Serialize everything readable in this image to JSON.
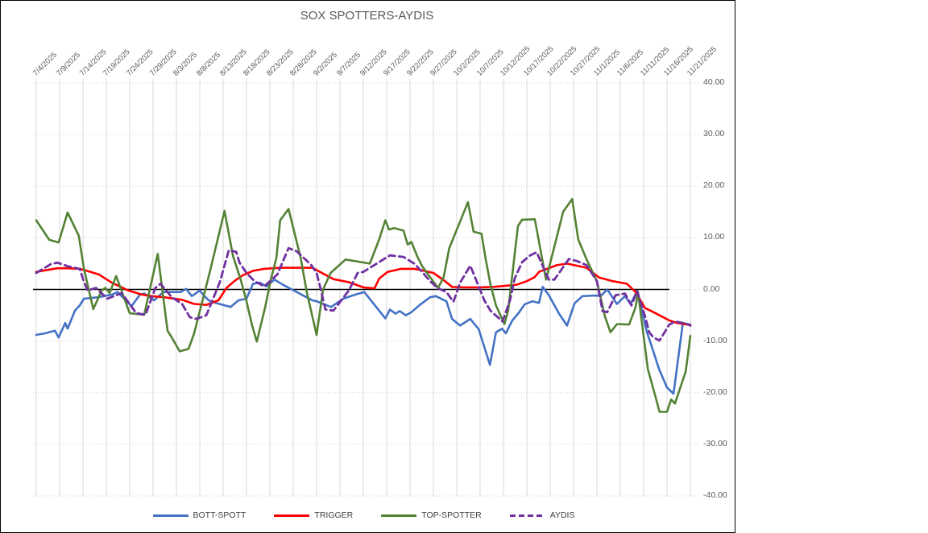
{
  "chart_data": {
    "type": "line",
    "title": "SOX SPOTTERS-AYDIS",
    "x_axis": {
      "unit": "date",
      "start_label": "7/4/2025",
      "end_label": "11/21/2025",
      "tick_interval_days": 5,
      "tick_labels": [
        "7/4/2025",
        "7/9/2025",
        "7/14/2025",
        "7/19/2025",
        "7/24/2025",
        "7/29/2025",
        "8/3/2025",
        "8/8/2025",
        "8/13/2025",
        "8/18/2025",
        "8/23/2025",
        "8/28/2025",
        "9/2/2025",
        "9/7/2025",
        "9/12/2025",
        "9/17/2025",
        "9/22/2025",
        "9/27/2025",
        "10/2/2025",
        "10/7/2025",
        "10/12/2025",
        "10/17/2025",
        "10/22/2025",
        "10/27/2025",
        "11/1/2025",
        "11/6/2025",
        "11/11/2025",
        "11/16/2025",
        "11/21/2025"
      ]
    },
    "y_axis": {
      "min": -40,
      "max": 40,
      "step": 10,
      "tick_labels": [
        "40.00",
        "30.00",
        "20.00",
        "10.00",
        "0.00",
        "-10.00",
        "-20.00",
        "-30.00",
        "-40.00"
      ]
    },
    "grid": true,
    "legend_position": "bottom",
    "colors": {
      "gridline": "#D9D9D9",
      "zero_axis": "#000000",
      "title_text": "#595959",
      "axis_text": "#595959"
    },
    "series": [
      {
        "name": "BOTT-SPOTT",
        "color": "#4472C4",
        "dash": "solid",
        "points": [
          [
            0,
            -8.8
          ],
          [
            1.9,
            -8.5
          ],
          [
            4,
            -8
          ],
          [
            4.8,
            -9.3
          ],
          [
            6.2,
            -6.5
          ],
          [
            6.7,
            -7.6
          ],
          [
            8.3,
            -4.1
          ],
          [
            9.3,
            -3.1
          ],
          [
            10.2,
            -1.8
          ],
          [
            13.4,
            -1.5
          ],
          [
            16.2,
            -1
          ],
          [
            17.4,
            -0.5
          ],
          [
            20,
            -2.9
          ],
          [
            20.5,
            -3.1
          ],
          [
            22.2,
            -1
          ],
          [
            23.1,
            -0.8
          ],
          [
            25.2,
            -2.1
          ],
          [
            27.2,
            -0.5
          ],
          [
            30.9,
            -0.5
          ],
          [
            32.1,
            0.1
          ],
          [
            33.3,
            -1.3
          ],
          [
            35,
            -0.2
          ],
          [
            36,
            -1.3
          ],
          [
            36.9,
            -2.1
          ],
          [
            38.4,
            -2.6
          ],
          [
            41.6,
            -3.4
          ],
          [
            43.3,
            -2.1
          ],
          [
            45,
            -1.8
          ],
          [
            46.4,
            1.1
          ],
          [
            47.9,
            1.3
          ],
          [
            49.3,
            0.6
          ],
          [
            51,
            1.9
          ],
          [
            52.8,
            0.9
          ],
          [
            54.5,
            0.1
          ],
          [
            57.4,
            -1.3
          ],
          [
            59.1,
            -2.1
          ],
          [
            60,
            -2.3
          ],
          [
            63.1,
            -3.4
          ],
          [
            65.7,
            -1.8
          ],
          [
            68.3,
            -1
          ],
          [
            70.2,
            -0.5
          ],
          [
            74.7,
            -5.6
          ],
          [
            75.7,
            -3.9
          ],
          [
            76.9,
            -4.7
          ],
          [
            77.8,
            -4.2
          ],
          [
            79.1,
            -5
          ],
          [
            80.3,
            -4.4
          ],
          [
            82.1,
            -3
          ],
          [
            84.3,
            -1.5
          ],
          [
            85.5,
            -1.3
          ],
          [
            87.8,
            -2.3
          ],
          [
            89,
            -5.7
          ],
          [
            90.7,
            -7
          ],
          [
            92.9,
            -5.7
          ],
          [
            94.7,
            -7.7
          ],
          [
            97.1,
            -14.6
          ],
          [
            98.4,
            -8.3
          ],
          [
            99.7,
            -7.6
          ],
          [
            100.5,
            -8.5
          ],
          [
            101.9,
            -6
          ],
          [
            103.3,
            -4.5
          ],
          [
            104.5,
            -2.9
          ],
          [
            106.2,
            -2.3
          ],
          [
            107.6,
            -2.6
          ],
          [
            108.4,
            0.5
          ],
          [
            109.7,
            -1.1
          ],
          [
            111.9,
            -4.7
          ],
          [
            113.6,
            -7
          ],
          [
            115.2,
            -2.7
          ],
          [
            116.9,
            -1.3
          ],
          [
            119.1,
            -1.2
          ],
          [
            120.9,
            -1.2
          ],
          [
            122.2,
            0
          ],
          [
            124.3,
            -2.8
          ],
          [
            126,
            -1.3
          ],
          [
            127.2,
            -2.8
          ],
          [
            128.6,
            -0.3
          ],
          [
            130.7,
            -8.3
          ],
          [
            131.6,
            -10.7
          ],
          [
            133.3,
            -15.4
          ],
          [
            135,
            -19
          ],
          [
            136.4,
            -20.2
          ],
          [
            138.4,
            -6.5
          ],
          [
            140,
            -6.8
          ]
        ]
      },
      {
        "name": "TRIGGER",
        "color": "#FF0000",
        "dash": "solid",
        "points": [
          [
            0,
            3.4
          ],
          [
            4.5,
            4.1
          ],
          [
            6.7,
            4.1
          ],
          [
            9.3,
            4
          ],
          [
            10.5,
            3.7
          ],
          [
            13.4,
            2.9
          ],
          [
            16.2,
            1.3
          ],
          [
            19.7,
            -0.2
          ],
          [
            22.6,
            -1
          ],
          [
            24.7,
            -1.3
          ],
          [
            27.2,
            -1.5
          ],
          [
            31.2,
            -2
          ],
          [
            33.8,
            -2.8
          ],
          [
            36.4,
            -3
          ],
          [
            39,
            -2.1
          ],
          [
            40.7,
            0.3
          ],
          [
            42.4,
            1.6
          ],
          [
            44.1,
            2.7
          ],
          [
            46.4,
            3.6
          ],
          [
            48.8,
            4
          ],
          [
            52.2,
            4.2
          ],
          [
            59.1,
            4.2
          ],
          [
            63.6,
            2
          ],
          [
            66.9,
            1.4
          ],
          [
            70,
            0.4
          ],
          [
            72.4,
            0.2
          ],
          [
            73.4,
            2.1
          ],
          [
            75.2,
            3.4
          ],
          [
            78.1,
            4
          ],
          [
            80.9,
            4
          ],
          [
            82.6,
            3.7
          ],
          [
            85,
            3.2
          ],
          [
            87.2,
            1.8
          ],
          [
            89,
            0.5
          ],
          [
            91.4,
            0.4
          ],
          [
            95,
            0.4
          ],
          [
            98,
            0.5
          ],
          [
            102.8,
            0.9
          ],
          [
            105,
            1.6
          ],
          [
            106.7,
            2.4
          ],
          [
            107.6,
            3.4
          ],
          [
            111.4,
            4.7
          ],
          [
            113.6,
            5
          ],
          [
            117.8,
            4.2
          ],
          [
            120.5,
            2.3
          ],
          [
            123.4,
            1.6
          ],
          [
            126.4,
            1.1
          ],
          [
            128.3,
            -0.5
          ],
          [
            130.3,
            -3.6
          ],
          [
            132.1,
            -4.4
          ],
          [
            133.8,
            -5.2
          ],
          [
            135.5,
            -6
          ],
          [
            137.2,
            -6.5
          ],
          [
            140,
            -6.9
          ]
        ]
      },
      {
        "name": "TOP-SPOTTER",
        "color": "#548235",
        "dash": "solid",
        "points": [
          [
            0,
            13.4
          ],
          [
            2.8,
            9.6
          ],
          [
            4.8,
            9.1
          ],
          [
            6.7,
            14.9
          ],
          [
            9.1,
            10.4
          ],
          [
            10.2,
            4
          ],
          [
            12.2,
            -3.8
          ],
          [
            14,
            -0.2
          ],
          [
            14.8,
            0.3
          ],
          [
            15.7,
            -0.7
          ],
          [
            17.1,
            2.6
          ],
          [
            20,
            -4.6
          ],
          [
            23.1,
            -4.9
          ],
          [
            26,
            6.9
          ],
          [
            28.1,
            -8
          ],
          [
            29,
            -9.3
          ],
          [
            30.7,
            -12
          ],
          [
            32.6,
            -11.5
          ],
          [
            33.8,
            -8.5
          ],
          [
            37.2,
            3.6
          ],
          [
            40.3,
            15.2
          ],
          [
            42.1,
            6.5
          ],
          [
            43.8,
            1.8
          ],
          [
            45,
            -2.3
          ],
          [
            46.2,
            -7
          ],
          [
            47.2,
            -10.1
          ],
          [
            49,
            -3.4
          ],
          [
            50.2,
            1.9
          ],
          [
            51.4,
            6.1
          ],
          [
            52.2,
            13.4
          ],
          [
            54,
            15.6
          ],
          [
            56.6,
            6.1
          ],
          [
            57.9,
            -0.5
          ],
          [
            60,
            -8.8
          ],
          [
            61.4,
            0
          ],
          [
            63,
            3.2
          ],
          [
            66.2,
            5.8
          ],
          [
            71.4,
            5
          ],
          [
            73.4,
            9.7
          ],
          [
            74.7,
            13.4
          ],
          [
            75.5,
            11.6
          ],
          [
            76.6,
            11.9
          ],
          [
            78.6,
            11.4
          ],
          [
            79.5,
            8.7
          ],
          [
            80.3,
            9.2
          ],
          [
            81.6,
            6.3
          ],
          [
            82.6,
            4.5
          ],
          [
            84.1,
            2.6
          ],
          [
            86,
            0.3
          ],
          [
            87.2,
            2.4
          ],
          [
            88.4,
            8
          ],
          [
            92.4,
            16.9
          ],
          [
            93.6,
            11.2
          ],
          [
            95.3,
            10.8
          ],
          [
            96.2,
            5.8
          ],
          [
            97.2,
            1
          ],
          [
            98.4,
            -3.1
          ],
          [
            100.2,
            -6.7
          ],
          [
            101,
            -4.1
          ],
          [
            102.2,
            5.3
          ],
          [
            103.1,
            12.3
          ],
          [
            104,
            13.5
          ],
          [
            106.7,
            13.6
          ],
          [
            109.1,
            1.9
          ],
          [
            112.8,
            15.1
          ],
          [
            114.7,
            17.5
          ],
          [
            116,
            9.7
          ],
          [
            117.8,
            5.8
          ],
          [
            120,
            1.6
          ],
          [
            121.7,
            -5.2
          ],
          [
            122.9,
            -8.3
          ],
          [
            124.3,
            -6.7
          ],
          [
            126.9,
            -6.8
          ],
          [
            128.3,
            -3.4
          ],
          [
            128.8,
            -0.5
          ],
          [
            130.9,
            -15.4
          ],
          [
            132.6,
            -21
          ],
          [
            133.4,
            -23.7
          ],
          [
            135,
            -23.7
          ],
          [
            135.9,
            -21.3
          ],
          [
            136.7,
            -22.1
          ],
          [
            139,
            -15.9
          ],
          [
            140,
            -9
          ]
        ]
      },
      {
        "name": "AYDIS",
        "color": "#7030A0",
        "dash": "dashed",
        "points": [
          [
            0,
            3.2
          ],
          [
            3.1,
            4.9
          ],
          [
            4.5,
            5.2
          ],
          [
            6.7,
            4.5
          ],
          [
            9.3,
            4
          ],
          [
            10.2,
            1.5
          ],
          [
            11,
            -0.2
          ],
          [
            12.8,
            0.3
          ],
          [
            15.2,
            -1.8
          ],
          [
            18.3,
            -0.7
          ],
          [
            21.4,
            -4.6
          ],
          [
            23.4,
            -4.9
          ],
          [
            25.5,
            0.3
          ],
          [
            26.6,
            1.1
          ],
          [
            29,
            -1.5
          ],
          [
            31.2,
            -2.8
          ],
          [
            32.9,
            -5.4
          ],
          [
            34.3,
            -5.7
          ],
          [
            36.4,
            -5
          ],
          [
            39.3,
            1.4
          ],
          [
            41.2,
            7.6
          ],
          [
            42.8,
            7.3
          ],
          [
            43.5,
            5.2
          ],
          [
            45,
            3.2
          ],
          [
            46.7,
            1.6
          ],
          [
            48.8,
            0.6
          ],
          [
            51.6,
            2.9
          ],
          [
            54,
            8
          ],
          [
            55.7,
            7.4
          ],
          [
            58.8,
            4.8
          ],
          [
            60,
            3.2
          ],
          [
            60.9,
            0
          ],
          [
            61.9,
            -3.9
          ],
          [
            63.6,
            -4.1
          ],
          [
            66.9,
            -0.2
          ],
          [
            68.8,
            3.2
          ],
          [
            70,
            3.4
          ],
          [
            75.7,
            6.6
          ],
          [
            78.6,
            6.3
          ],
          [
            80.9,
            5
          ],
          [
            82.6,
            3.4
          ],
          [
            84.3,
            1.6
          ],
          [
            86,
            0.2
          ],
          [
            87.8,
            -0.5
          ],
          [
            89.3,
            -2.4
          ],
          [
            90.7,
            1.3
          ],
          [
            92.9,
            4.6
          ],
          [
            94.7,
            0.6
          ],
          [
            95.9,
            -2.1
          ],
          [
            97.2,
            -4.1
          ],
          [
            99.8,
            -6.2
          ],
          [
            101.4,
            -2.1
          ],
          [
            102.4,
            2.1
          ],
          [
            104,
            5.3
          ],
          [
            105.7,
            6.6
          ],
          [
            107.1,
            7.2
          ],
          [
            109.7,
            1.9
          ],
          [
            110.9,
            1.9
          ],
          [
            114,
            5.9
          ],
          [
            115.7,
            5.5
          ],
          [
            117.8,
            4.7
          ],
          [
            120,
            1.6
          ],
          [
            121.2,
            -4.2
          ],
          [
            122.2,
            -4.4
          ],
          [
            124,
            -1.1
          ],
          [
            126,
            -0.8
          ],
          [
            127.4,
            -3.1
          ],
          [
            128.6,
            -0.3
          ],
          [
            130.3,
            -5.2
          ],
          [
            131.2,
            -8.3
          ],
          [
            132.1,
            -9.3
          ],
          [
            133.4,
            -9.9
          ],
          [
            135.5,
            -6.8
          ],
          [
            136.7,
            -6.2
          ],
          [
            139,
            -6.6
          ],
          [
            140,
            -7
          ]
        ]
      }
    ]
  }
}
